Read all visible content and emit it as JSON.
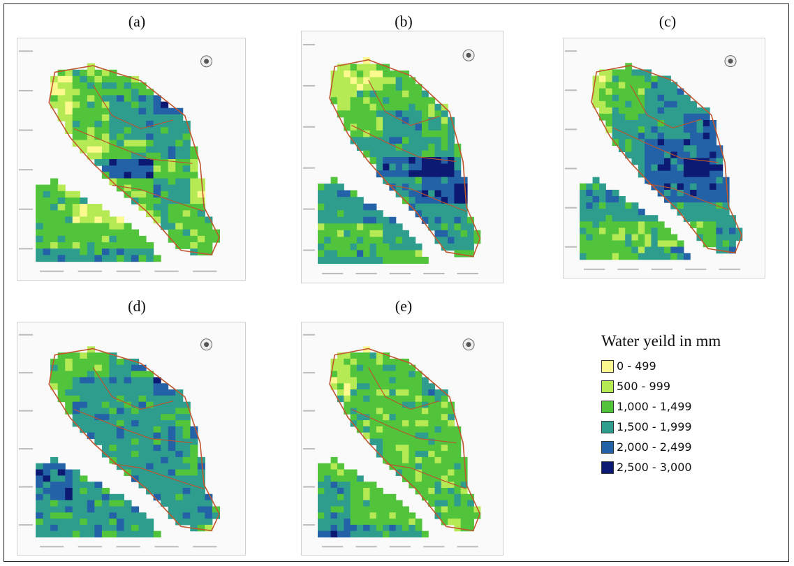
{
  "panels": [
    {
      "label": "(a)",
      "scheme": [
        2,
        2,
        3,
        3,
        4,
        2,
        3,
        3,
        5,
        4,
        2,
        3,
        4,
        5,
        4,
        2,
        3,
        4,
        4,
        3,
        3,
        2,
        3,
        4,
        3,
        3,
        4,
        5,
        3,
        2,
        3,
        3,
        3,
        4,
        2,
        3,
        2,
        2,
        3,
        3,
        3,
        3,
        3,
        3,
        3,
        4,
        4,
        4,
        3,
        3
      ]
    },
    {
      "label": "(b)",
      "scheme": [
        1,
        1,
        2,
        2,
        3,
        2,
        2,
        3,
        3,
        3,
        2,
        3,
        3,
        3,
        2,
        3,
        3,
        4,
        3,
        3,
        3,
        4,
        4,
        4,
        3,
        3,
        4,
        5,
        6,
        4,
        4,
        4,
        4,
        5,
        6,
        4,
        4,
        4,
        4,
        4,
        3,
        3,
        4,
        4,
        4,
        4,
        4,
        3,
        3,
        3
      ]
    },
    {
      "label": "(c)",
      "scheme": [
        2,
        2,
        3,
        3,
        3,
        2,
        3,
        4,
        4,
        4,
        2,
        3,
        4,
        4,
        4,
        3,
        4,
        4,
        5,
        4,
        3,
        4,
        5,
        5,
        5,
        3,
        4,
        5,
        6,
        5,
        4,
        4,
        5,
        5,
        5,
        4,
        4,
        4,
        4,
        4,
        3,
        3,
        3,
        3,
        4,
        3,
        3,
        4,
        4,
        4
      ]
    },
    {
      "label": "(d)",
      "scheme": [
        2,
        3,
        4,
        4,
        5,
        3,
        3,
        4,
        5,
        5,
        3,
        4,
        4,
        5,
        5,
        3,
        4,
        4,
        4,
        4,
        4,
        4,
        4,
        4,
        5,
        4,
        4,
        4,
        4,
        4,
        5,
        4,
        4,
        4,
        4,
        5,
        4,
        4,
        4,
        4,
        4,
        4,
        4,
        4,
        4,
        4,
        4,
        4,
        3,
        3
      ]
    },
    {
      "label": "(e)",
      "scheme": [
        1,
        2,
        2,
        3,
        3,
        2,
        3,
        3,
        4,
        3,
        2,
        3,
        3,
        4,
        4,
        3,
        3,
        3,
        3,
        3,
        3,
        3,
        3,
        3,
        3,
        3,
        4,
        3,
        3,
        3,
        3,
        3,
        3,
        3,
        3,
        4,
        3,
        3,
        3,
        3,
        4,
        3,
        3,
        3,
        3,
        5,
        4,
        4,
        3,
        3
      ]
    }
  ],
  "legend": {
    "title": "Water yeild in mm",
    "classes": [
      {
        "label": "0 - 499",
        "color": "#fcf98e"
      },
      {
        "label": "500 - 999",
        "color": "#b5ea55"
      },
      {
        "label": "1,000 - 1,499",
        "color": "#52c43c"
      },
      {
        "label": "1,500 - 1,999",
        "color": "#2e9d8e"
      },
      {
        "label": "2,000 - 2,499",
        "color": "#2462a8"
      },
      {
        "label": "2,500 - 3,000",
        "color": "#0c1a73"
      }
    ]
  }
}
